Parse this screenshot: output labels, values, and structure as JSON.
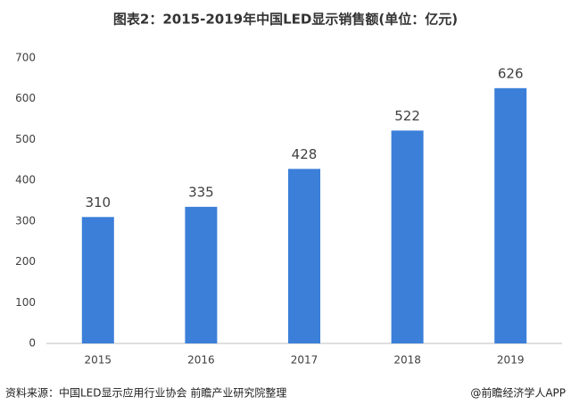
{
  "chart_data": {
    "type": "bar",
    "title": "图表2：2015-2019年中国LED显示销售额(单位：亿元)",
    "categories": [
      "2015",
      "2016",
      "2017",
      "2018",
      "2019"
    ],
    "values": [
      310,
      335,
      428,
      522,
      626
    ],
    "color": "#3b7fd9",
    "ylim": [
      0,
      700
    ],
    "yticks": [
      0,
      100,
      200,
      300,
      400,
      500,
      600,
      700
    ],
    "grid": false,
    "source": "资料来源：中国LED显示应用行业协会 前瞻产业研究院整理",
    "credit": "@前瞻经济学人APP"
  }
}
